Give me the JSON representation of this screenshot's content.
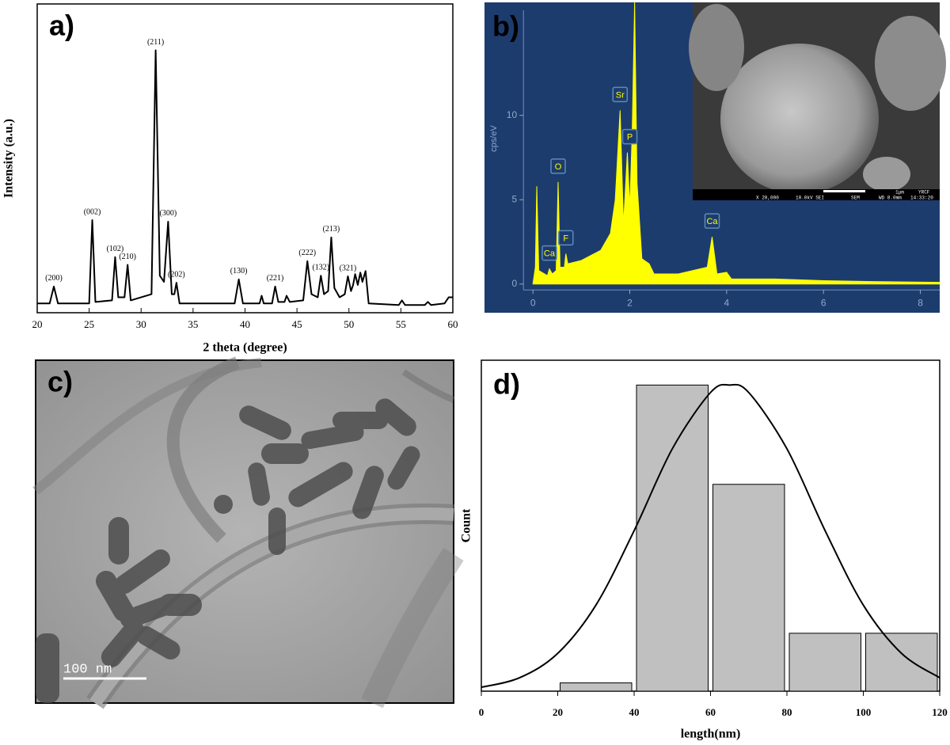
{
  "chart_data": [
    {
      "type": "line",
      "label": "a)",
      "xlabel": "2 theta (degree)",
      "ylabel": "Intensity (a.u.)",
      "color": "#000000",
      "xlim": [
        20,
        60
      ],
      "xticks": [
        20,
        25,
        30,
        35,
        40,
        45,
        50,
        55,
        60
      ],
      "ylim": [
        0,
        100
      ],
      "x": [
        20,
        21.2,
        21.6,
        22.0,
        25.0,
        25.3,
        25.6,
        27.2,
        27.5,
        27.8,
        28.4,
        28.7,
        29.0,
        31.0,
        31.4,
        31.8,
        32.2,
        32.6,
        32.95,
        33.2,
        33.4,
        33.7,
        39.0,
        39.4,
        39.8,
        41.4,
        41.6,
        41.8,
        42.6,
        42.9,
        43.2,
        43.8,
        44.0,
        44.3,
        45.6,
        46.0,
        46.4,
        47.0,
        47.3,
        47.6,
        48.0,
        48.3,
        48.6,
        49.1,
        49.6,
        49.9,
        50.2,
        50.4,
        50.6,
        50.85,
        51.1,
        51.3,
        51.6,
        51.9,
        54.8,
        55.1,
        55.4,
        57.3,
        57.6,
        57.9,
        59.2,
        59.6,
        60
      ],
      "values": [
        3,
        3,
        8.5,
        3,
        3,
        30,
        3.5,
        4,
        18,
        5,
        5,
        15.5,
        4,
        6,
        85,
        12,
        10,
        29.5,
        6,
        6,
        9.7,
        3,
        3,
        10.8,
        3,
        3,
        5.5,
        3,
        3,
        8.5,
        3.5,
        3.5,
        5.5,
        3.5,
        4,
        16.7,
        6,
        5,
        12,
        6,
        7,
        24.4,
        8,
        5,
        6,
        11.8,
        7,
        9,
        12.5,
        9,
        13,
        10,
        13.5,
        3,
        2.5,
        4,
        2.5,
        2.5,
        3.5,
        2.5,
        3,
        5,
        5
      ],
      "annotations": [
        {
          "text": "(200)",
          "x": 21.6,
          "y": 8.5
        },
        {
          "text": "(002)",
          "x": 25.3,
          "y": 30
        },
        {
          "text": "(102)",
          "x": 27.5,
          "y": 18
        },
        {
          "text": "(210)",
          "x": 28.7,
          "y": 15.5
        },
        {
          "text": "(211)",
          "x": 31.4,
          "y": 85
        },
        {
          "text": "(300)",
          "x": 32.6,
          "y": 29.5
        },
        {
          "text": "(202)",
          "x": 33.4,
          "y": 9.7
        },
        {
          "text": "(130)",
          "x": 39.4,
          "y": 10.8
        },
        {
          "text": "(221)",
          "x": 42.9,
          "y": 8.5
        },
        {
          "text": "(222)",
          "x": 46.0,
          "y": 16.7
        },
        {
          "text": "(132)",
          "x": 47.3,
          "y": 12
        },
        {
          "text": "(213)",
          "x": 48.3,
          "y": 24.4
        },
        {
          "text": "(321)",
          "x": 49.9,
          "y": 11.8
        }
      ]
    },
    {
      "type": "area",
      "label": "b)",
      "ylabel": "cps/eV",
      "color": "#ffff00",
      "background": "#1d3c6e",
      "xlim": [
        -1,
        8.4
      ],
      "xticks": [
        0,
        2,
        4,
        6,
        8
      ],
      "ylim": [
        -1.7,
        16.7
      ],
      "yticks": [
        0,
        5,
        10
      ],
      "x": [
        0,
        0.05,
        0.08,
        0.12,
        0.3,
        0.34,
        0.4,
        0.48,
        0.52,
        0.56,
        0.65,
        0.68,
        0.72,
        1.0,
        1.4,
        1.6,
        1.7,
        1.8,
        1.87,
        1.95,
        2.0,
        2.05,
        2.1,
        2.15,
        2.25,
        2.4,
        2.5,
        3.0,
        3.6,
        3.7,
        3.8,
        4.0,
        4.1,
        5,
        6,
        7,
        8.4
      ],
      "values": [
        0,
        1,
        5.8,
        0.8,
        0.5,
        0.9,
        0.6,
        0.8,
        6.05,
        1.0,
        1.0,
        1.8,
        1.2,
        1.4,
        2.0,
        3.0,
        5.0,
        10.3,
        3.5,
        7.8,
        4.5,
        9.0,
        16.7,
        6.0,
        1.5,
        1.2,
        0.6,
        0.6,
        1.0,
        2.8,
        0.6,
        0.7,
        0.3,
        0.3,
        0.2,
        0.15,
        0.1
      ],
      "annotations": [
        {
          "text": "Ca",
          "x": 0.34,
          "y": 0.9
        },
        {
          "text": "O",
          "x": 0.52,
          "y": 6.05
        },
        {
          "text": "F",
          "x": 0.68,
          "y": 1.8
        },
        {
          "text": "Sr",
          "x": 1.8,
          "y": 10.3
        },
        {
          "text": "P",
          "x": 2.0,
          "y": 7.8
        },
        {
          "text": "Ca",
          "x": 3.7,
          "y": 2.8
        }
      ],
      "inset": {
        "scale": "1μm",
        "lab": "YRCF",
        "magnification": "X 20,000",
        "voltage": "10.0kV SEI",
        "mode": "SEM",
        "wd": "WD 8.0mm",
        "time": "14:33:20"
      }
    },
    {
      "type": "histogram",
      "label": "d)",
      "xlabel": "length(nm)",
      "ylabel": "Count",
      "color": "#c0c0c0",
      "bins": [
        20,
        40,
        60,
        80,
        100,
        120
      ],
      "values": [
        1,
        37,
        25,
        7,
        7
      ],
      "xlim": [
        0,
        120
      ],
      "xticks": [
        0,
        20,
        40,
        60,
        80,
        100,
        120
      ],
      "ylim": [
        0,
        40
      ],
      "fit": {
        "x": [
          0,
          10,
          20,
          30,
          40,
          50,
          60,
          65,
          70,
          80,
          90,
          100,
          110,
          120
        ],
        "values": [
          0.47,
          1.62,
          4.57,
          10.4,
          19.4,
          29.3,
          36.1,
          37,
          36.1,
          29.3,
          19.4,
          10.4,
          4.57,
          1.62
        ]
      }
    }
  ],
  "images": [
    {
      "label": "c)",
      "scale_bar": "100 nm"
    }
  ]
}
